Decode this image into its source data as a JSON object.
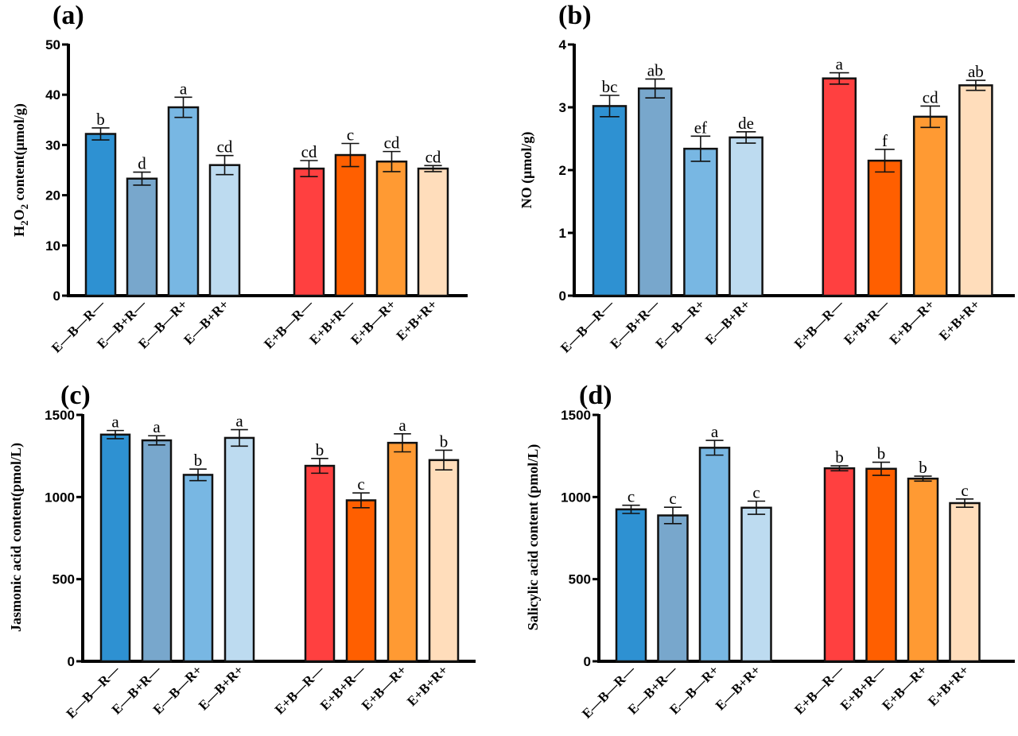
{
  "figure": {
    "categories": [
      "E—B—R—",
      "E—B+R—",
      "E—B—R+",
      "E—B+R+",
      "E+B—R—",
      "E+B+R—",
      "E+B—R+",
      "E+B+R+"
    ],
    "bar_colors": [
      "#2E91D2",
      "#78A7CC",
      "#78B7E3",
      "#BDDBF0",
      "#FF4040",
      "#FF5F00",
      "#FF9A33",
      "#FFDDBB"
    ]
  },
  "chart_data": [
    {
      "type": "bar",
      "panel": "(a)",
      "title": "",
      "ylabel": "H2O2 content(μmol/g)",
      "ylabel_parts": {
        "pre": "H",
        "sub1": "2",
        "mid": "O",
        "sub2": "2",
        "post": " content(μmol/g)"
      },
      "xlabel": "",
      "ylim": [
        0,
        50
      ],
      "yticks": [
        0,
        10,
        20,
        30,
        40,
        50
      ],
      "categories": [
        "E—B—R—",
        "E—B+R—",
        "E—B—R+",
        "E—B+R+",
        "E+B—R—",
        "E+B+R—",
        "E+B—R+",
        "E+B+R+"
      ],
      "values": [
        32.2,
        23.3,
        37.5,
        26.0,
        25.3,
        28.0,
        26.7,
        25.3
      ],
      "errors": [
        1.2,
        1.3,
        2.0,
        1.9,
        1.6,
        2.3,
        2.0,
        0.6
      ],
      "significance": [
        "b",
        "d",
        "a",
        "cd",
        "cd",
        "c",
        "cd",
        "cd"
      ],
      "grid": false
    },
    {
      "type": "bar",
      "panel": "(b)",
      "title": "",
      "ylabel": "NO (μmol/g)",
      "xlabel": "",
      "ylim": [
        0,
        4
      ],
      "yticks": [
        0,
        1,
        2,
        3,
        4
      ],
      "categories": [
        "E—B—R—",
        "E—B+R—",
        "E—B—R+",
        "E—B+R+",
        "E+B—R—",
        "E+B+R—",
        "E+B—R+",
        "E+B+R+"
      ],
      "values": [
        3.02,
        3.3,
        2.34,
        2.52,
        3.46,
        2.15,
        2.85,
        3.35
      ],
      "errors": [
        0.17,
        0.15,
        0.2,
        0.09,
        0.09,
        0.18,
        0.17,
        0.08
      ],
      "significance": [
        "bc",
        "ab",
        "ef",
        "de",
        "a",
        "f",
        "cd",
        "ab"
      ],
      "grid": false
    },
    {
      "type": "bar",
      "panel": "(c)",
      "title": "",
      "ylabel": "Jasmonic acid content(pmol/L)",
      "xlabel": "",
      "ylim": [
        0,
        1500
      ],
      "yticks": [
        0,
        500,
        1000,
        1500
      ],
      "categories": [
        "E—B—R—",
        "E—B+R—",
        "E—B—R+",
        "E—B+R+",
        "E+B—R—",
        "E+B+R—",
        "E+B—R+",
        "E+B+R+"
      ],
      "values": [
        1380,
        1345,
        1135,
        1360,
        1190,
        980,
        1330,
        1225
      ],
      "errors": [
        25,
        28,
        35,
        50,
        45,
        45,
        55,
        60
      ],
      "significance": [
        "a",
        "a",
        "b",
        "a",
        "b",
        "c",
        "a",
        "b"
      ],
      "grid": false
    },
    {
      "type": "bar",
      "panel": "(d)",
      "title": "",
      "ylabel": "Salicylic acid content (pmol/L)",
      "xlabel": "",
      "ylim": [
        0,
        1500
      ],
      "yticks": [
        0,
        500,
        1000,
        1500
      ],
      "categories": [
        "E—B—R—",
        "E—B+R—",
        "E—B—R+",
        "E—B+R+",
        "E+B—R—",
        "E+B+R—",
        "E+B—R+",
        "E+B+R+"
      ],
      "values": [
        925,
        888,
        1300,
        935,
        1175,
        1172,
        1112,
        963
      ],
      "errors": [
        25,
        50,
        45,
        40,
        15,
        40,
        15,
        25
      ],
      "significance": [
        "c",
        "c",
        "a",
        "c",
        "b",
        "b",
        "b",
        "c"
      ],
      "grid": false
    }
  ]
}
